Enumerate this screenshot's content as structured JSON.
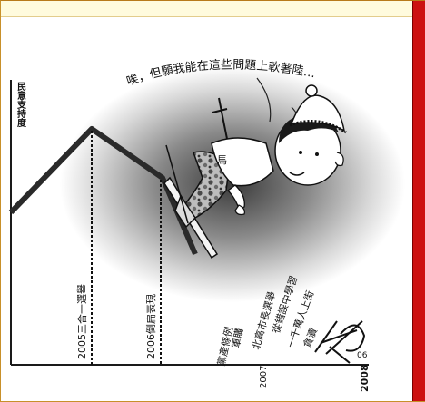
{
  "ylabel": "民意支持度",
  "speech": "唉，但願我能在這些問題上軟著陸…",
  "event_2005": "2005三合一選舉",
  "event_2006": "2006倒扁表現",
  "issues": [
    "黨產條例",
    "軍購",
    "北高市長選舉",
    "從錯誤中學習",
    "一千萬人上街",
    "貪瀆"
  ],
  "year_2007": "2007",
  "year_2008": "2008",
  "badge_label": "馬",
  "signature": "06",
  "colors": {
    "frame": "#c8902a",
    "top_band": "#fffbdd",
    "side_bar": "#cc1111",
    "ink": "#1a1a1a"
  }
}
